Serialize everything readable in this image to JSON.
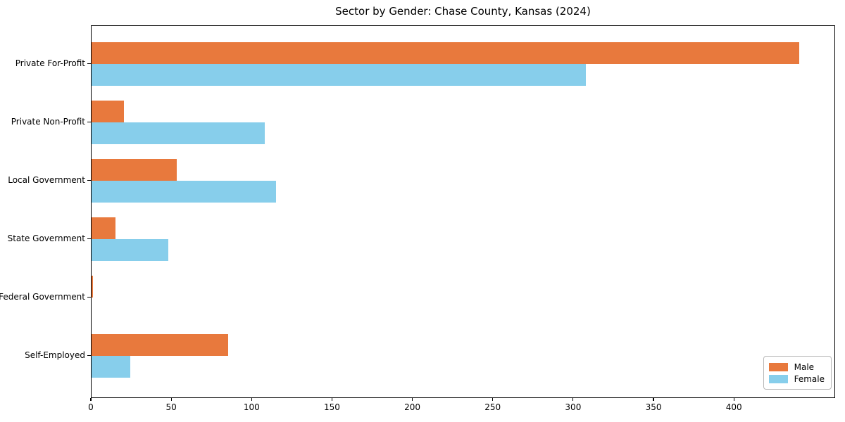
{
  "chart_data": {
    "type": "bar",
    "orientation": "horizontal",
    "title": "Sector by Gender: Chase County, Kansas (2024)",
    "categories": [
      "Private For-Profit",
      "Private Non-Profit",
      "Local Government",
      "State Government",
      "Federal Government",
      "Self-Employed"
    ],
    "series": [
      {
        "name": "Male",
        "color": "#e8793d",
        "values": [
          441,
          20,
          53,
          15,
          1,
          85
        ]
      },
      {
        "name": "Female",
        "color": "#87ceeb",
        "values": [
          308,
          108,
          115,
          48,
          0,
          24
        ]
      }
    ],
    "xlabel": "",
    "ylabel": "",
    "xlim": [
      0,
      463
    ],
    "xticks": [
      0,
      50,
      100,
      150,
      200,
      250,
      300,
      350,
      400
    ],
    "grid": false,
    "legend_position": "lower right",
    "axis_color": "#000000",
    "text_color": "#000000",
    "background_color": "#ffffff"
  }
}
